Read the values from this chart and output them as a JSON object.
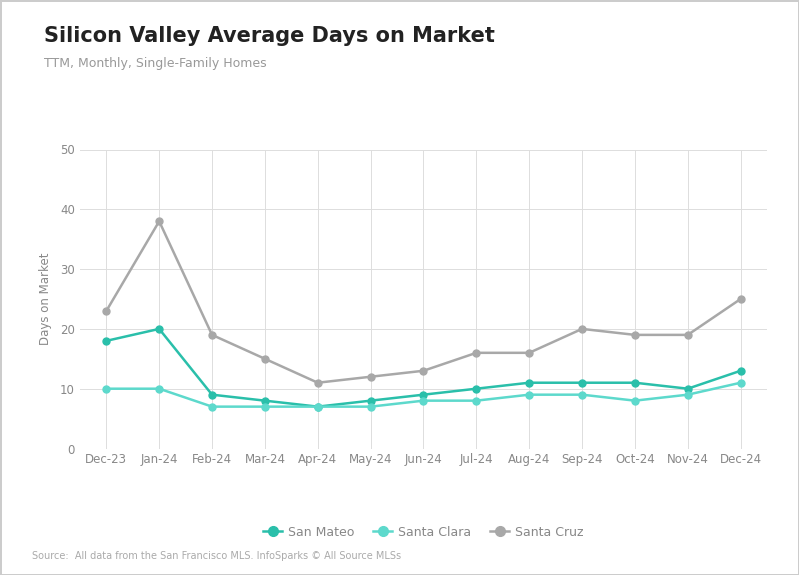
{
  "title": "Silicon Valley Average Days on Market",
  "subtitle": "TTM, Monthly, Single-Family Homes",
  "ylabel": "Days on Market",
  "source": "Source:  All data from the San Francisco MLS. InfoSparks © All Source MLSs",
  "x_labels": [
    "Dec-23",
    "Jan-24",
    "Feb-24",
    "Mar-24",
    "Apr-24",
    "May-24",
    "Jun-24",
    "Jul-24",
    "Aug-24",
    "Sep-24",
    "Oct-24",
    "Nov-24",
    "Dec-24"
  ],
  "san_mateo": [
    18,
    20,
    9,
    8,
    7,
    8,
    9,
    10,
    11,
    11,
    11,
    10,
    13
  ],
  "santa_clara": [
    10,
    10,
    7,
    7,
    7,
    7,
    8,
    8,
    9,
    9,
    8,
    9,
    11
  ],
  "santa_cruz": [
    23,
    38,
    19,
    15,
    11,
    12,
    13,
    16,
    16,
    20,
    19,
    19,
    25
  ],
  "san_mateo_color": "#2abfaa",
  "santa_clara_color": "#5dd9cc",
  "santa_cruz_color": "#a8a8a8",
  "ylim": [
    0,
    50
  ],
  "yticks": [
    0,
    10,
    20,
    30,
    40,
    50
  ],
  "background_color": "#ffffff",
  "grid_color": "#dddddd",
  "title_fontsize": 15,
  "subtitle_fontsize": 9,
  "axis_fontsize": 8.5,
  "legend_fontsize": 9,
  "source_fontsize": 7
}
